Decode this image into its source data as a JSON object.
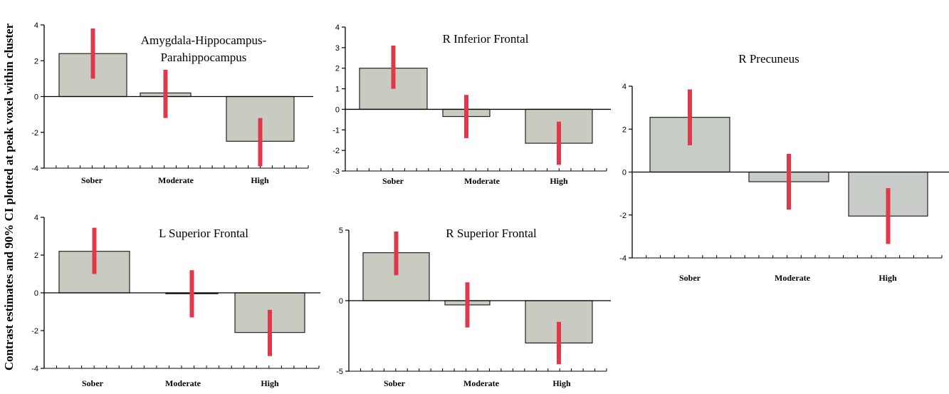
{
  "figure": {
    "ylabel": "Contrast estimates and 90% CI plotted at peak voxel within cluster",
    "colors": {
      "bar_fill": "#c9cbc0",
      "bar_fill_alt": "#c8ccc6",
      "ci_color": "#e0384a",
      "axis": "#000000"
    }
  },
  "chart_data": [
    {
      "type": "bar",
      "title": [
        "Amygdala-Hippocampus-",
        "Parahippocampus"
      ],
      "categories": [
        "Sober",
        "Moderate",
        "High"
      ],
      "values": [
        2.4,
        0.2,
        -2.5
      ],
      "ci_low": [
        1.0,
        -1.2,
        -3.9
      ],
      "ci_high": [
        3.8,
        1.5,
        -1.2
      ],
      "ylim": [
        -4,
        4
      ],
      "yticks": [
        -4,
        -2,
        0,
        2,
        4
      ],
      "ytick_labels": [
        "-4",
        "-2",
        "0",
        "2",
        "4"
      ]
    },
    {
      "type": "bar",
      "title": [
        "R  Inferior Frontal"
      ],
      "categories": [
        "Sober",
        "Moderate",
        "High"
      ],
      "values": [
        2.0,
        -0.35,
        -1.65
      ],
      "ci_low": [
        1.0,
        -1.4,
        -2.7
      ],
      "ci_high": [
        3.1,
        0.7,
        -0.6
      ],
      "ylim": [
        -3,
        4
      ],
      "yticks": [
        -3,
        -2,
        -1,
        0,
        1,
        2,
        3,
        4
      ],
      "ytick_labels": [
        "-3",
        "-2",
        "-1",
        "0",
        "1",
        "2",
        "3",
        "4"
      ]
    },
    {
      "type": "bar",
      "title": [
        "R Precuneus"
      ],
      "categories": [
        "Sober",
        "Moderate",
        "High"
      ],
      "values": [
        2.55,
        -0.45,
        -2.05
      ],
      "ci_low": [
        1.25,
        -1.75,
        -3.35
      ],
      "ci_high": [
        3.85,
        0.85,
        -0.75
      ],
      "ylim": [
        -4,
        4
      ],
      "yticks": [
        -4,
        -2,
        0,
        2,
        4
      ],
      "ytick_labels": [
        "-4",
        "-2",
        "0",
        "2",
        "4"
      ]
    },
    {
      "type": "bar",
      "title": [
        "L Superior Frontal"
      ],
      "categories": [
        "Sober",
        "Moderate",
        "High"
      ],
      "values": [
        2.2,
        -0.05,
        -2.1
      ],
      "ci_low": [
        1.0,
        -1.3,
        -3.35
      ],
      "ci_high": [
        3.45,
        1.2,
        -0.9
      ],
      "ylim": [
        -4,
        4
      ],
      "yticks": [
        -4,
        -2,
        0,
        2,
        4
      ],
      "ytick_labels": [
        "-4",
        "-2",
        "0",
        "2",
        "4"
      ]
    },
    {
      "type": "bar",
      "title": [
        "R Superior Frontal"
      ],
      "categories": [
        "Sober",
        "Moderate",
        "High"
      ],
      "values": [
        3.4,
        -0.3,
        -3.0
      ],
      "ci_low": [
        1.8,
        -1.9,
        -4.5
      ],
      "ci_high": [
        4.9,
        1.3,
        -1.5
      ],
      "ylim": [
        -5,
        5
      ],
      "yticks": [
        -5,
        0,
        5
      ],
      "ytick_labels": [
        "-5",
        "0",
        "5"
      ]
    }
  ]
}
